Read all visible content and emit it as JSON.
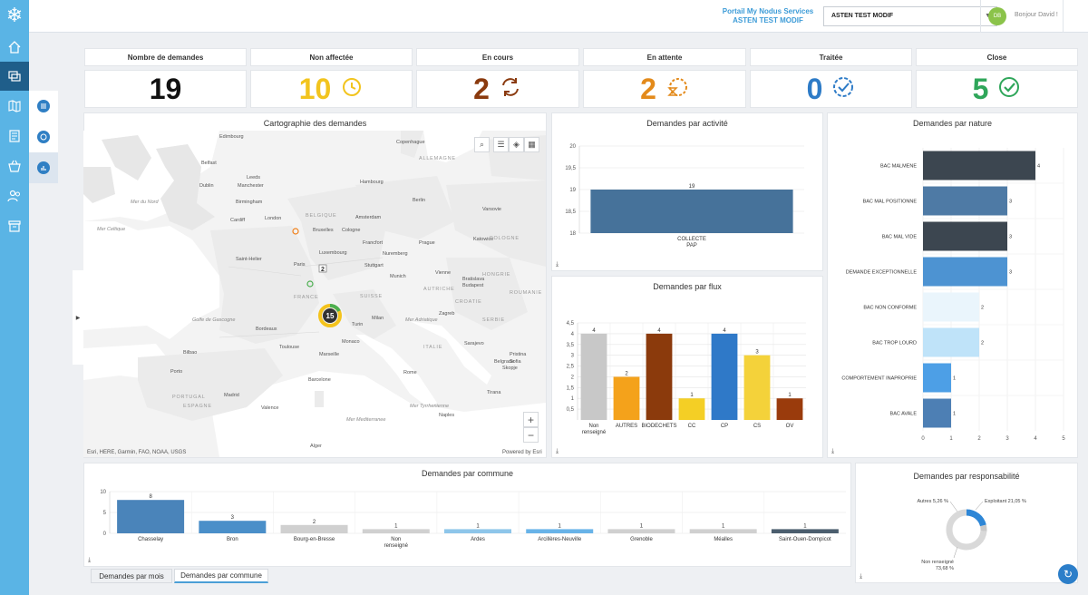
{
  "topbar": {
    "portal_line1": "Portail My Nodus Services",
    "portal_line2": "ASTEN TEST MODIF",
    "org_selector_value": "ASTEN TEST MODIF",
    "avatar_initials": "DB",
    "greeting": "Bonjour David !"
  },
  "kpis": [
    {
      "label": "Nombre de demandes",
      "value": "19",
      "color": "#111111",
      "icon": "none"
    },
    {
      "label": "Non affectée",
      "value": "10",
      "color": "#f2c41e",
      "icon": "clock-arrow-icon"
    },
    {
      "label": "En cours",
      "value": "2",
      "color": "#8a3a0e",
      "icon": "cycle-arrows-icon"
    },
    {
      "label": "En attente",
      "value": "2",
      "color": "#e38a1b",
      "icon": "hourglass-icon"
    },
    {
      "label": "Traitée",
      "value": "0",
      "color": "#2d7bc7",
      "icon": "check-circle-dashed-icon"
    },
    {
      "label": "Close",
      "value": "5",
      "color": "#2fa65a",
      "icon": "check-circle-icon"
    }
  ],
  "map": {
    "title": "Cartographie des demandes",
    "attribution": "Esri, HERE, Garmin, FAO, NOAA, USGS",
    "powered_by": "Powered by Esri",
    "cluster_label": "15",
    "pin_label": "2",
    "zoom_in": "+",
    "zoom_out": "−",
    "place_labels": [
      "Edimbourg",
      "Copenhague",
      "Belfast",
      "Leeds",
      "Manchester",
      "Dublin",
      "Birmingham",
      "Cardiff",
      "London",
      "Hambourg",
      "Berlin",
      "Varsovie",
      "Amsterdam",
      "Bruxelles",
      "Cologne",
      "Francfort",
      "Luxembourg",
      "Prague",
      "Katowice",
      "Saint-Helier",
      "Paris",
      "Stuttgart",
      "Nuremberg",
      "Munich",
      "Vienne",
      "Bratislava",
      "Budapest",
      "Turin",
      "Milan",
      "Zagreb",
      "Bordeaux",
      "Toulouse",
      "Monaco",
      "Marseille",
      "Bilbao",
      "Porto",
      "Madrid",
      "Barcelone",
      "Valence",
      "Rome",
      "Naples",
      "Belgrade",
      "Sarajevo",
      "Sofia",
      "Skopje",
      "Pristina",
      "Tirana",
      "Alger",
      "FRANCE",
      "ESPAGNE",
      "ITALIE",
      "PORTUGAL",
      "SUISSE",
      "AUTRICHE",
      "ALLEMAGNE",
      "POLOGNE",
      "HONGRIE",
      "ROUMANIE",
      "SERBIE",
      "BELGIQUE",
      "CROATIE",
      "Mer du Nord",
      "Mer Celtique",
      "Golfe de Gascogne",
      "Mer Tyrrhenienne",
      "Mer Mediterranee",
      "Mer Adriatique"
    ]
  },
  "chart_data": [
    {
      "type": "bar",
      "title": "Demandes par activité",
      "categories": [
        "COLLECTE PAP"
      ],
      "values": [
        19
      ],
      "ylim": [
        18,
        20
      ],
      "yticks": [
        "20",
        "19,5",
        "19",
        "18,5",
        "18"
      ],
      "colors": [
        "#46729a"
      ]
    },
    {
      "type": "bar",
      "title": "Demandes par flux",
      "categories": [
        "Non renseigné",
        "AUTRES",
        "BIODECHETS",
        "CC",
        "CP",
        "CS",
        "OV"
      ],
      "values": [
        4,
        2,
        4,
        1,
        4,
        3,
        1
      ],
      "ylim": [
        0,
        4.5
      ],
      "yticks": [
        "4,5",
        "4",
        "3,5",
        "3",
        "2,5",
        "2",
        "1,5",
        "1",
        "0,5"
      ],
      "colors": [
        "#c8c8c8",
        "#f4a21b",
        "#8b3a0c",
        "#f4cf25",
        "#2f79c8",
        "#f4d23a",
        "#9a3b0c"
      ]
    },
    {
      "type": "bar",
      "orientation": "horizontal",
      "title": "Demandes par nature",
      "categories": [
        "BAC MALMENE",
        "BAC MAL POSITIONNE",
        "BAC MAL VIDE",
        "DEMANDE EXCEPTIONNELLE",
        "BAC NON CONFORME",
        "BAC TROP LOURD",
        "COMPORTEMENT INAPROPRIE",
        "BAC AVALE"
      ],
      "values": [
        4,
        3,
        3,
        3,
        2,
        2,
        1,
        1
      ],
      "xlim": [
        0,
        5
      ],
      "xticks": [
        "0",
        "1",
        "2",
        "3",
        "4",
        "5"
      ],
      "colors": [
        "#3c4650",
        "#4e7aa5",
        "#3c4650",
        "#4d93d2",
        "#eaf5fc",
        "#bfe3f9",
        "#4d9fe6",
        "#4d7fb4"
      ]
    },
    {
      "type": "bar",
      "title": "Demandes par commune",
      "categories": [
        "Chasselay",
        "Bron",
        "Bourg-en-Bresse",
        "Non renseigné",
        "Ardes",
        "Arcillères-Neuville",
        "Grenoble",
        "Méalles",
        "Saint-Ouen-Dompicot"
      ],
      "values": [
        8,
        3,
        2,
        1,
        1,
        1,
        1,
        1,
        1
      ],
      "ylim": [
        0,
        10
      ],
      "yticks": [
        "10",
        "5",
        "0"
      ],
      "colors": [
        "#4a84ba",
        "#4a8fc9",
        "#d0d0d0",
        "#d0d0d0",
        "#8ec6ea",
        "#68b3e8",
        "#d0d0d0",
        "#d0d0d0",
        "#4b5e6e"
      ]
    },
    {
      "type": "pie",
      "title": "Demandes par responsabilité",
      "categories": [
        "Exploitant",
        "Autres",
        "Non renseigné"
      ],
      "values": [
        21.05,
        5.26,
        73.68
      ],
      "labels": [
        "Exploitant 21,05 %",
        "Autres 5,26 %",
        "Non renseigné 73,68 %"
      ],
      "colors": [
        "#2d86d6",
        "#c9c9c9",
        "#d9d9d9"
      ]
    }
  ],
  "tabs": [
    "Demandes par mois",
    "Demandes par commune"
  ]
}
